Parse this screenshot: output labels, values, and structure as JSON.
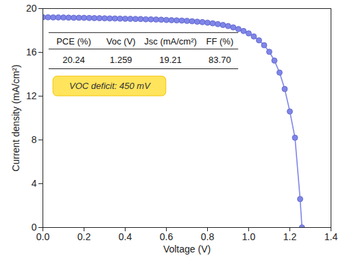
{
  "chart_data": {
    "type": "line",
    "x_label": "Voltage (V)",
    "y_label": "Current density (mA/cm²)",
    "x": [
      0,
      0.025,
      0.05,
      0.075,
      0.1,
      0.125,
      0.15,
      0.175,
      0.2,
      0.225,
      0.25,
      0.275,
      0.3,
      0.325,
      0.35,
      0.375,
      0.4,
      0.425,
      0.45,
      0.475,
      0.5,
      0.525,
      0.55,
      0.575,
      0.6,
      0.625,
      0.65,
      0.675,
      0.7,
      0.725,
      0.75,
      0.775,
      0.8,
      0.825,
      0.85,
      0.875,
      0.9,
      0.925,
      0.95,
      0.975,
      1.0,
      1.025,
      1.05,
      1.075,
      1.1,
      1.125,
      1.15,
      1.175,
      1.2,
      1.225,
      1.25,
      1.259
    ],
    "values": [
      19.21,
      19.2,
      19.19,
      19.19,
      19.18,
      19.17,
      19.16,
      19.16,
      19.15,
      19.14,
      19.13,
      19.12,
      19.11,
      19.1,
      19.09,
      19.08,
      19.07,
      19.06,
      19.05,
      19.04,
      19.02,
      19.01,
      19.0,
      18.98,
      18.96,
      18.94,
      18.92,
      18.9,
      18.87,
      18.84,
      18.8,
      18.76,
      18.71,
      18.65,
      18.58,
      18.5,
      18.4,
      18.28,
      18.13,
      17.95,
      17.73,
      17.45,
      17.1,
      16.65,
      16.05,
      15.25,
      14.15,
      12.65,
      10.6,
      8.2,
      2.6,
      0
    ],
    "color": "#7f86e8",
    "marker": "circle",
    "line_style": "solid",
    "xlim": [
      0,
      1.4
    ],
    "xticks": [
      {
        "value": 0,
        "label": "0.0"
      },
      {
        "value": 0.2,
        "label": "0.2"
      },
      {
        "value": 0.4,
        "label": "0.4"
      },
      {
        "value": 0.6,
        "label": "0.6"
      },
      {
        "value": 0.8,
        "label": "0.8"
      },
      {
        "value": 1.0,
        "label": "1.0"
      },
      {
        "value": 1.2,
        "label": "1.2"
      },
      {
        "value": 1.4,
        "label": "1.4"
      }
    ],
    "ylim": [
      0,
      20
    ],
    "yticks": [
      0,
      4,
      8,
      12,
      16,
      20
    ],
    "grid": false,
    "table": {
      "columns": [
        "PCE (%)",
        "Voc (V)",
        "Jsc (mA/cm²)",
        "FF (%)"
      ],
      "rows": [
        [
          "20.24",
          "1.259",
          "19.21",
          "83.70"
        ]
      ]
    },
    "annotations": [
      {
        "text": "VOC deficit: 450 mV"
      }
    ]
  }
}
